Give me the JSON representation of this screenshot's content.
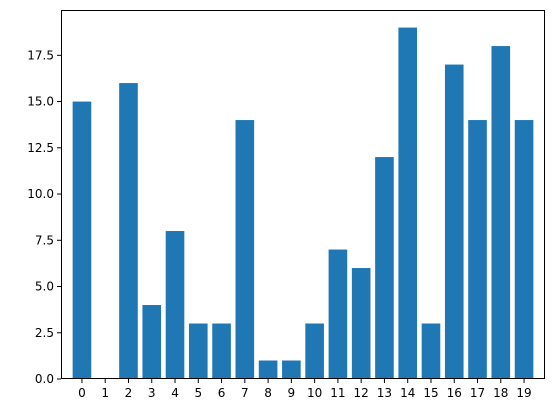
{
  "chart_data": {
    "type": "bar",
    "categories": [
      "0",
      "1",
      "2",
      "3",
      "4",
      "5",
      "6",
      "7",
      "8",
      "9",
      "10",
      "11",
      "12",
      "13",
      "14",
      "15",
      "16",
      "17",
      "18",
      "19"
    ],
    "values": [
      15,
      0,
      16,
      4,
      8,
      3,
      3,
      14,
      1,
      1,
      3,
      7,
      6,
      12,
      19,
      3,
      17,
      14,
      18,
      14
    ],
    "title": "",
    "xlabel": "",
    "ylabel": "",
    "ylim": [
      0,
      19.95
    ],
    "yticks": [
      "0.0",
      "2.5",
      "5.0",
      "7.5",
      "10.0",
      "12.5",
      "15.0",
      "17.5"
    ],
    "grid": false,
    "bar_color": "#1f77b4"
  }
}
